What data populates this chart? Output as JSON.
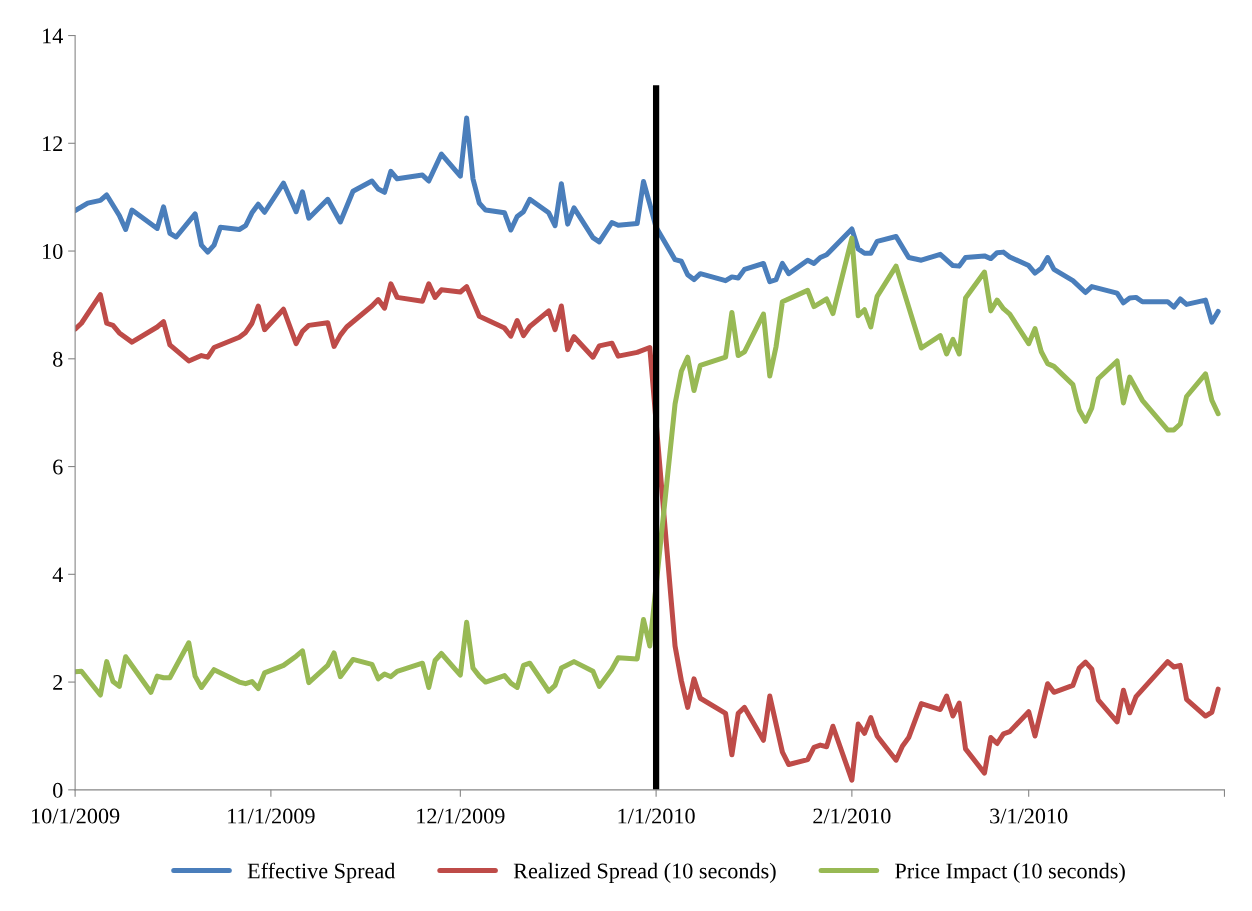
{
  "chart_data": {
    "type": "line",
    "xlim": [
      "2009-10-01",
      "2010-04-01"
    ],
    "xticks": [
      {
        "value": "2009-10-01",
        "label": "10/1/2009"
      },
      {
        "value": "2009-11-01",
        "label": "11/1/2009"
      },
      {
        "value": "2009-12-01",
        "label": "12/1/2009"
      },
      {
        "value": "2010-01-01",
        "label": "1/1/2010"
      },
      {
        "value": "2010-02-01",
        "label": "2/1/2010"
      },
      {
        "value": "2010-03-01",
        "label": "3/1/2010"
      },
      {
        "value": "2010-04-01",
        "label": null
      }
    ],
    "ylim": [
      0,
      14
    ],
    "yticks": [
      0,
      2,
      4,
      6,
      8,
      10,
      12,
      14
    ],
    "grid": false,
    "legend": "bottom",
    "marker": "none",
    "line_style": "solid",
    "ref_lines": [
      {
        "axis": "x",
        "value": "2010-01-01",
        "label": null,
        "color": "#000000"
      }
    ],
    "series": [
      {
        "name": "Effective Spread",
        "color": "#4a7ebb",
        "x": [
          "2009-10-01",
          "2009-10-03",
          "2009-10-05",
          "2009-10-06",
          "2009-10-08",
          "2009-10-09",
          "2009-10-10",
          "2009-10-14",
          "2009-10-15",
          "2009-10-16",
          "2009-10-17",
          "2009-10-20",
          "2009-10-21",
          "2009-10-22",
          "2009-10-23",
          "2009-10-24",
          "2009-10-27",
          "2009-10-28",
          "2009-10-29",
          "2009-10-30",
          "2009-10-31",
          "2009-11-03",
          "2009-11-05",
          "2009-11-06",
          "2009-11-07",
          "2009-11-10",
          "2009-11-12",
          "2009-11-14",
          "2009-11-17",
          "2009-11-18",
          "2009-11-19",
          "2009-11-20",
          "2009-11-21",
          "2009-11-25",
          "2009-11-26",
          "2009-11-28",
          "2009-12-01",
          "2009-12-02",
          "2009-12-03",
          "2009-12-04",
          "2009-12-05",
          "2009-12-08",
          "2009-12-09",
          "2009-12-10",
          "2009-12-11",
          "2009-12-12",
          "2009-12-15",
          "2009-12-16",
          "2009-12-17",
          "2009-12-18",
          "2009-12-19",
          "2009-12-22",
          "2009-12-23",
          "2009-12-25",
          "2009-12-26",
          "2009-12-29",
          "2009-12-30",
          "2009-12-31",
          "2010-01-01",
          "2010-01-04",
          "2010-01-05",
          "2010-01-06",
          "2010-01-07",
          "2010-01-08",
          "2010-01-12",
          "2010-01-13",
          "2010-01-14",
          "2010-01-15",
          "2010-01-18",
          "2010-01-19",
          "2010-01-20",
          "2010-01-21",
          "2010-01-22",
          "2010-01-25",
          "2010-01-26",
          "2010-01-27",
          "2010-01-28",
          "2010-02-01",
          "2010-02-02",
          "2010-02-03",
          "2010-02-04",
          "2010-02-05",
          "2010-02-08",
          "2010-02-10",
          "2010-02-12",
          "2010-02-15",
          "2010-02-17",
          "2010-02-18",
          "2010-02-19",
          "2010-02-22",
          "2010-02-23",
          "2010-02-24",
          "2010-02-25",
          "2010-02-26",
          "2010-03-01",
          "2010-03-02",
          "2010-03-03",
          "2010-03-04",
          "2010-03-05",
          "2010-03-08",
          "2010-03-10",
          "2010-03-11",
          "2010-03-15",
          "2010-03-16",
          "2010-03-17",
          "2010-03-18",
          "2010-03-19",
          "2010-03-23",
          "2010-03-24",
          "2010-03-25",
          "2010-03-26",
          "2010-03-29",
          "2010-03-30",
          "2010-03-31"
        ],
        "values": [
          10.75,
          10.89,
          10.94,
          11.04,
          10.66,
          10.4,
          10.76,
          10.42,
          10.82,
          10.33,
          10.26,
          10.69,
          10.11,
          9.98,
          10.11,
          10.44,
          10.4,
          10.47,
          10.71,
          10.87,
          10.72,
          11.26,
          10.73,
          11.1,
          10.61,
          10.96,
          10.54,
          11.11,
          11.3,
          11.15,
          11.09,
          11.48,
          11.34,
          11.41,
          11.3,
          11.8,
          11.39,
          12.47,
          11.34,
          10.89,
          10.76,
          10.71,
          10.39,
          10.64,
          10.73,
          10.96,
          10.71,
          10.47,
          11.25,
          10.5,
          10.8,
          10.25,
          10.17,
          10.53,
          10.48,
          10.51,
          11.29,
          10.87,
          10.44,
          9.84,
          9.81,
          9.56,
          9.47,
          9.58,
          9.45,
          9.52,
          9.5,
          9.66,
          9.77,
          9.43,
          9.47,
          9.77,
          9.58,
          9.83,
          9.77,
          9.88,
          9.93,
          10.41,
          10.04,
          9.96,
          9.96,
          10.18,
          10.27,
          9.88,
          9.83,
          9.94,
          9.73,
          9.72,
          9.88,
          9.91,
          9.86,
          9.97,
          9.98,
          9.89,
          9.73,
          9.59,
          9.68,
          9.88,
          9.66,
          9.45,
          9.23,
          9.34,
          9.22,
          9.04,
          9.13,
          9.14,
          9.06,
          9.06,
          8.96,
          9.11,
          9.01,
          9.09,
          8.68,
          8.88
        ]
      },
      {
        "name": "Realized Spread (10 seconds)",
        "color": "#be4b48",
        "x": [
          "2009-10-01",
          "2009-10-02",
          "2009-10-05",
          "2009-10-06",
          "2009-10-07",
          "2009-10-08",
          "2009-10-10",
          "2009-10-14",
          "2009-10-15",
          "2009-10-16",
          "2009-10-19",
          "2009-10-21",
          "2009-10-22",
          "2009-10-23",
          "2009-10-27",
          "2009-10-28",
          "2009-10-29",
          "2009-10-30",
          "2009-10-31",
          "2009-11-03",
          "2009-11-05",
          "2009-11-06",
          "2009-11-07",
          "2009-11-10",
          "2009-11-11",
          "2009-11-12",
          "2009-11-13",
          "2009-11-17",
          "2009-11-18",
          "2009-11-19",
          "2009-11-20",
          "2009-11-21",
          "2009-11-25",
          "2009-11-26",
          "2009-11-27",
          "2009-11-28",
          "2009-12-01",
          "2009-12-02",
          "2009-12-04",
          "2009-12-08",
          "2009-12-09",
          "2009-12-10",
          "2009-12-11",
          "2009-12-12",
          "2009-12-15",
          "2009-12-16",
          "2009-12-17",
          "2009-12-18",
          "2009-12-19",
          "2009-12-22",
          "2009-12-23",
          "2009-12-25",
          "2009-12-26",
          "2009-12-29",
          "2009-12-31",
          "2010-01-04",
          "2010-01-05",
          "2010-01-06",
          "2010-01-07",
          "2010-01-08",
          "2010-01-12",
          "2010-01-13",
          "2010-01-14",
          "2010-01-15",
          "2010-01-18",
          "2010-01-19",
          "2010-01-21",
          "2010-01-22",
          "2010-01-25",
          "2010-01-26",
          "2010-01-27",
          "2010-01-28",
          "2010-01-29",
          "2010-02-01",
          "2010-02-02",
          "2010-02-03",
          "2010-02-04",
          "2010-02-05",
          "2010-02-08",
          "2010-02-09",
          "2010-02-10",
          "2010-02-12",
          "2010-02-15",
          "2010-02-16",
          "2010-02-17",
          "2010-02-18",
          "2010-02-19",
          "2010-02-22",
          "2010-02-23",
          "2010-02-24",
          "2010-02-25",
          "2010-02-26",
          "2010-03-01",
          "2010-03-02",
          "2010-03-04",
          "2010-03-05",
          "2010-03-08",
          "2010-03-09",
          "2010-03-10",
          "2010-03-11",
          "2010-03-12",
          "2010-03-15",
          "2010-03-16",
          "2010-03-17",
          "2010-03-18",
          "2010-03-23",
          "2010-03-24",
          "2010-03-25",
          "2010-03-26",
          "2010-03-29",
          "2010-03-30",
          "2010-03-31"
        ],
        "values": [
          8.55,
          8.66,
          9.19,
          8.66,
          8.62,
          8.48,
          8.31,
          8.59,
          8.69,
          8.26,
          7.96,
          8.06,
          8.03,
          8.21,
          8.4,
          8.49,
          8.66,
          8.98,
          8.54,
          8.92,
          8.28,
          8.51,
          8.62,
          8.67,
          8.23,
          8.44,
          8.59,
          8.98,
          9.1,
          8.94,
          9.39,
          9.14,
          9.07,
          9.39,
          9.14,
          9.28,
          9.24,
          9.34,
          8.79,
          8.57,
          8.42,
          8.71,
          8.43,
          8.6,
          8.89,
          8.54,
          8.98,
          8.17,
          8.41,
          8.03,
          8.24,
          8.29,
          8.05,
          8.12,
          8.21,
          2.67,
          2.03,
          1.53,
          2.06,
          1.7,
          1.42,
          0.65,
          1.42,
          1.53,
          0.92,
          1.74,
          0.7,
          0.47,
          0.56,
          0.79,
          0.83,
          0.8,
          1.18,
          0.18,
          1.22,
          1.05,
          1.34,
          1.0,
          0.55,
          0.81,
          0.97,
          1.6,
          1.49,
          1.74,
          1.37,
          1.61,
          0.76,
          0.31,
          0.97,
          0.86,
          1.04,
          1.08,
          1.45,
          1.0,
          1.97,
          1.81,
          1.94,
          2.26,
          2.37,
          2.24,
          1.67,
          1.26,
          1.85,
          1.43,
          1.73,
          2.38,
          2.28,
          2.31,
          1.68,
          1.37,
          1.44,
          1.87
        ]
      },
      {
        "name": "Price Impact (10 seconds)",
        "color": "#98b954",
        "x": [
          "2009-10-01",
          "2009-10-02",
          "2009-10-05",
          "2009-10-06",
          "2009-10-07",
          "2009-10-08",
          "2009-10-09",
          "2009-10-13",
          "2009-10-14",
          "2009-10-15",
          "2009-10-16",
          "2009-10-19",
          "2009-10-20",
          "2009-10-21",
          "2009-10-23",
          "2009-10-27",
          "2009-10-28",
          "2009-10-29",
          "2009-10-30",
          "2009-10-31",
          "2009-11-03",
          "2009-11-05",
          "2009-11-06",
          "2009-11-07",
          "2009-11-10",
          "2009-11-11",
          "2009-11-12",
          "2009-11-14",
          "2009-11-17",
          "2009-11-18",
          "2009-11-19",
          "2009-11-20",
          "2009-11-21",
          "2009-11-25",
          "2009-11-26",
          "2009-11-27",
          "2009-11-28",
          "2009-12-01",
          "2009-12-02",
          "2009-12-03",
          "2009-12-04",
          "2009-12-05",
          "2009-12-08",
          "2009-12-09",
          "2009-12-10",
          "2009-12-11",
          "2009-12-12",
          "2009-12-15",
          "2009-12-16",
          "2009-12-17",
          "2009-12-19",
          "2009-12-22",
          "2009-12-23",
          "2009-12-25",
          "2009-12-26",
          "2009-12-29",
          "2009-12-30",
          "2009-12-31",
          "2010-01-04",
          "2010-01-05",
          "2010-01-06",
          "2010-01-07",
          "2010-01-08",
          "2010-01-12",
          "2010-01-13",
          "2010-01-14",
          "2010-01-15",
          "2010-01-18",
          "2010-01-19",
          "2010-01-20",
          "2010-01-21",
          "2010-01-25",
          "2010-01-26",
          "2010-01-28",
          "2010-01-29",
          "2010-02-01",
          "2010-02-02",
          "2010-02-03",
          "2010-02-04",
          "2010-02-05",
          "2010-02-08",
          "2010-02-12",
          "2010-02-15",
          "2010-02-16",
          "2010-02-17",
          "2010-02-18",
          "2010-02-19",
          "2010-02-22",
          "2010-02-23",
          "2010-02-24",
          "2010-02-25",
          "2010-02-26",
          "2010-03-01",
          "2010-03-02",
          "2010-03-03",
          "2010-03-04",
          "2010-03-05",
          "2010-03-08",
          "2010-03-09",
          "2010-03-10",
          "2010-03-11",
          "2010-03-12",
          "2010-03-15",
          "2010-03-16",
          "2010-03-17",
          "2010-03-19",
          "2010-03-23",
          "2010-03-24",
          "2010-03-25",
          "2010-03-26",
          "2010-03-29",
          "2010-03-30",
          "2010-03-31"
        ],
        "values": [
          2.19,
          2.2,
          1.76,
          2.38,
          2.01,
          1.92,
          2.47,
          1.81,
          2.11,
          2.08,
          2.08,
          2.73,
          2.11,
          1.9,
          2.23,
          2.0,
          1.97,
          2.01,
          1.88,
          2.17,
          2.31,
          2.48,
          2.58,
          1.99,
          2.31,
          2.54,
          2.1,
          2.42,
          2.33,
          2.06,
          2.15,
          2.1,
          2.2,
          2.35,
          1.9,
          2.4,
          2.53,
          2.13,
          3.11,
          2.26,
          2.11,
          2.0,
          2.12,
          1.98,
          1.9,
          2.31,
          2.35,
          1.83,
          1.94,
          2.26,
          2.38,
          2.2,
          1.92,
          2.24,
          2.45,
          2.43,
          3.16,
          2.67,
          7.16,
          7.77,
          8.03,
          7.41,
          7.88,
          8.03,
          8.86,
          8.06,
          8.13,
          8.83,
          7.68,
          8.23,
          9.06,
          9.27,
          8.97,
          9.11,
          8.84,
          10.24,
          8.8,
          8.91,
          8.59,
          9.16,
          9.72,
          8.2,
          8.43,
          8.09,
          8.36,
          8.09,
          9.13,
          9.61,
          8.89,
          9.09,
          8.93,
          8.83,
          8.28,
          8.56,
          8.13,
          7.91,
          7.86,
          7.52,
          7.05,
          6.84,
          7.09,
          7.63,
          7.96,
          7.18,
          7.66,
          7.23,
          6.68,
          6.68,
          6.79,
          7.3,
          7.72,
          7.23,
          6.98
        ]
      }
    ]
  }
}
